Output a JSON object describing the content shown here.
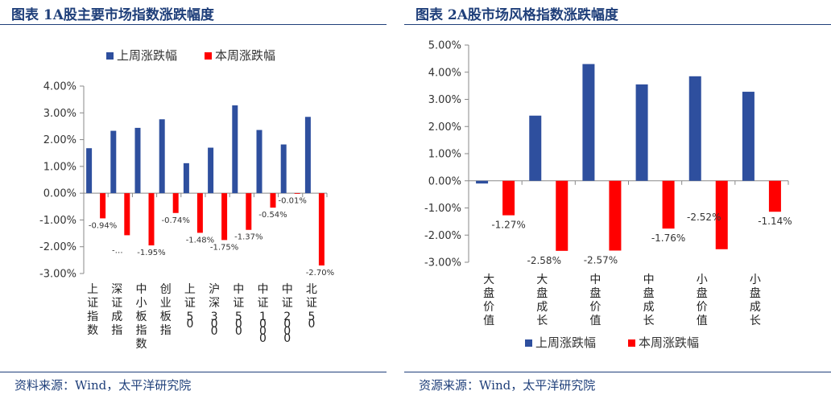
{
  "colors": {
    "last_week": "#2e4f9e",
    "this_week": "#ff0000",
    "title": "#1f3f7a"
  },
  "left_panel": {
    "title": "图表 1A股主要市场指数涨跌幅度",
    "source": "资料来源：Wind，太平洋研究院"
  },
  "right_panel": {
    "title": "图表 2A股市场风格指数涨跌幅度",
    "source": "资源来源：Wind，太平洋研究院"
  },
  "chart_data": [
    {
      "type": "bar",
      "title": "A股主要市场指数涨跌幅度",
      "categories": [
        "上证指数",
        "深证成指",
        "中小板指数",
        "创业板指",
        "上证50",
        "沪深300",
        "中证500",
        "中证1000",
        "中证2000",
        "北证50"
      ],
      "series": [
        {
          "name": "上周涨跌幅",
          "values": [
            1.68,
            2.33,
            2.44,
            2.76,
            1.12,
            1.7,
            3.28,
            2.36,
            1.82,
            2.85
          ]
        },
        {
          "name": "本周涨跌幅",
          "values": [
            -0.94,
            -1.57,
            -1.95,
            -0.74,
            -1.48,
            -1.75,
            -1.37,
            -0.54,
            -0.01,
            -2.7
          ],
          "labels": [
            "-0.94%",
            "-…",
            "-1.95%",
            "-0.74%",
            "-1.48%",
            "-1.75%",
            "-1.37%",
            "-0.54%",
            "-0.01%",
            "-2.70%"
          ]
        }
      ],
      "y_ticks": [
        "4.00%",
        "3.00%",
        "2.00%",
        "1.00%",
        "0.00%",
        "-1.00%",
        "-2.00%",
        "-3.00%"
      ],
      "ylim": [
        -3,
        4
      ],
      "legend": "top"
    },
    {
      "type": "bar",
      "title": "A股市场风格指数涨跌幅度",
      "categories": [
        "大盘价值",
        "大盘成长",
        "中盘价值",
        "中盘成长",
        "小盘价值",
        "小盘成长"
      ],
      "series": [
        {
          "name": "上周涨跌幅",
          "values": [
            -0.1,
            2.4,
            4.3,
            3.55,
            3.85,
            3.28
          ]
        },
        {
          "name": "本周涨跌幅",
          "values": [
            -1.27,
            -2.58,
            -2.57,
            -1.76,
            -2.52,
            -1.14
          ],
          "labels": [
            "-1.27%",
            "-2.58%",
            "-2.57%",
            "-1.76%",
            "-2.52%",
            "-1.14%"
          ]
        }
      ],
      "y_ticks": [
        "5.00%",
        "4.00%",
        "3.00%",
        "2.00%",
        "1.00%",
        "0.00%",
        "-1.00%",
        "-2.00%",
        "-3.00%"
      ],
      "ylim": [
        -3,
        5
      ],
      "legend": "bottom"
    }
  ]
}
